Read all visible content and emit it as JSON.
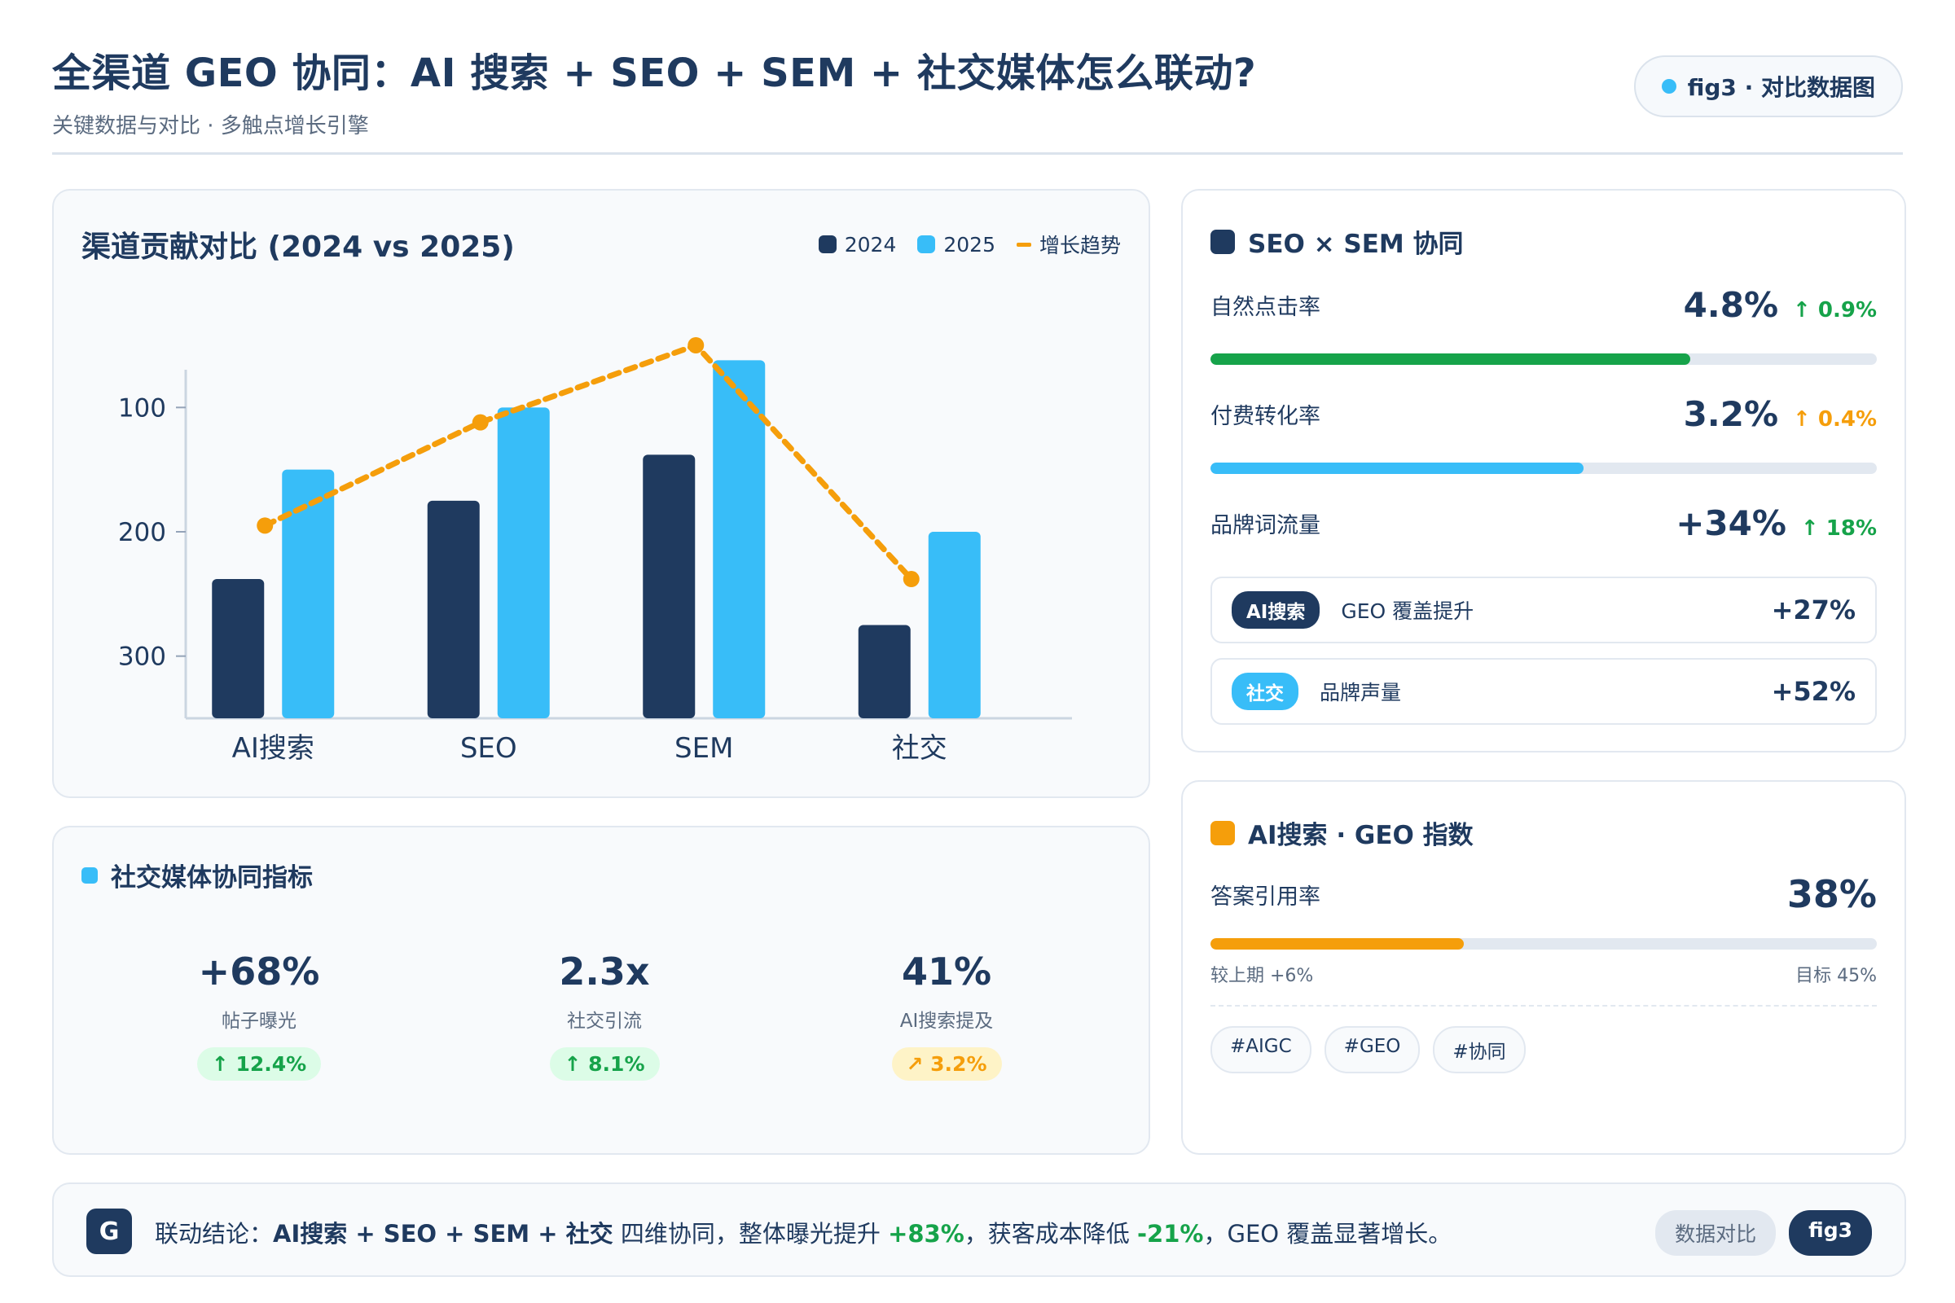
{
  "header": {
    "title": "全渠道 GEO 协同：AI 搜索 + SEO + SEM + 社交媒体怎么联动?",
    "subtitle": "关键数据与对比 · 多触点增长引擎",
    "fig_label": "fig3 · 对比数据图"
  },
  "chart_card": {
    "title": "渠道贡献对比 (2024 vs 2025)",
    "legend": {
      "s2024": "2024",
      "s2025": "2025",
      "trend": "增长趋势"
    }
  },
  "chart_data": {
    "type": "bar",
    "title": "渠道贡献对比 (2024 vs 2025)",
    "categories": [
      "AI搜索",
      "SEO",
      "SEM",
      "社交"
    ],
    "series": [
      {
        "name": "2024",
        "values": [
          112,
          175,
          212,
          75
        ],
        "color": "#1f3a5f"
      },
      {
        "name": "2025",
        "values": [
          200,
          250,
          288,
          150
        ],
        "color": "#38bdf8"
      }
    ],
    "trend": {
      "name": "增长趋势",
      "values": [
        155,
        238,
        300,
        112
      ],
      "color": "#f59e0b"
    },
    "y_ticks": [
      "300",
      "200",
      "100"
    ],
    "y_tick_values": [
      50,
      150,
      250
    ],
    "ylim": [
      0,
      300
    ],
    "grid": false,
    "legend_position": "top-right",
    "xlabel": "",
    "ylabel": ""
  },
  "social_card": {
    "title": "社交媒体协同指标",
    "metrics": [
      {
        "value": "+68%",
        "label": "帖子曝光",
        "delta": "↑ 12.4%"
      },
      {
        "value": "2.3x",
        "label": "社交引流",
        "delta": "↑ 8.1%"
      },
      {
        "value": "41%",
        "label": "AI搜索提及",
        "delta": "↗ 3.2%"
      }
    ]
  },
  "seo_card": {
    "title": "SEO × SEM 协同",
    "rows": [
      {
        "label": "自然点击率",
        "value": "4.8%",
        "delta": "↑ 0.9%",
        "progress": 0.72,
        "color": "#16a34a",
        "delta_color": "#16a34a"
      },
      {
        "label": "付费转化率",
        "value": "3.2%",
        "delta": "↑ 0.4%",
        "progress": 0.56,
        "color": "#38bdf8",
        "delta_color": "#f59e0b"
      },
      {
        "label": "品牌词流量",
        "value": "+34%",
        "delta": "↑ 18%",
        "delta_color": "#16a34a"
      }
    ],
    "items": [
      {
        "tag": "AI搜索",
        "text": "GEO 覆盖提升",
        "value": "+27%",
        "tag_color": "#1f3a5f"
      },
      {
        "tag": "社交",
        "text": "品牌声量",
        "value": "+52%",
        "tag_color": "#38bdf8"
      }
    ]
  },
  "geo_card": {
    "title": "AI搜索 · GEO 指数",
    "label": "答案引用率",
    "value": "38%",
    "progress": 0.38,
    "left_note": "较上期 +6%",
    "right_note": "目标 45%",
    "hashtags": [
      "#AIGC",
      "#GEO",
      "#协同"
    ]
  },
  "footer": {
    "icon_letter": "G",
    "prefix": "联动结论：",
    "channels": "AI搜索 + SEO + SEM + 社交",
    "mid1": " 四维协同，整体曝光提升 ",
    "exposure": "+83%",
    "mid2": "，获客成本降低 ",
    "cost": "-21%",
    "suffix": "，GEO 覆盖显著增长。",
    "tag1": "数据对比",
    "tag2": "fig3"
  },
  "colors": {
    "navy": "#1f3a5f",
    "sky": "#38bdf8",
    "amber": "#f59e0b",
    "green": "#16a34a"
  }
}
